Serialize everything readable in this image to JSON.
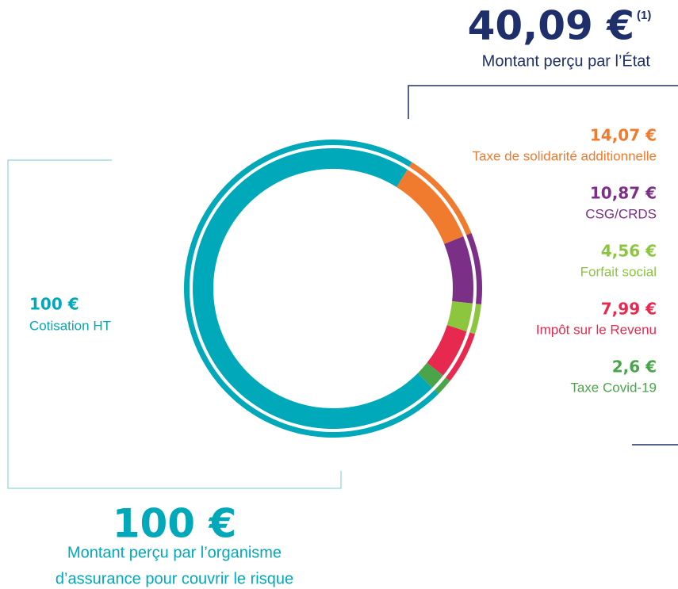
{
  "chart_data": {
    "type": "donut",
    "state_amount": "40,09 €",
    "state_note": "(1)",
    "state_caption": "Montant perçu par l’État",
    "insurer_amount": "100 €",
    "insurer_caption": [
      "Montant perçu par l’organisme",
      "d’assurance pour couvrir le risque"
    ],
    "categories": [
      "Taxe de solidarité additionnelle",
      "CSG/CRDS",
      "Forfait social",
      "Impôt sur le Revenu",
      "Taxe Covid-19",
      "Cotisation HT"
    ],
    "values": [
      14.07,
      10.87,
      4.56,
      7.99,
      2.6,
      100
    ],
    "value_labels": [
      "14,07 €",
      "10,87 €",
      "4,56 €",
      "7,99 €",
      "2,6 €",
      "100 €"
    ],
    "colors": [
      "#f07a2e",
      "#7c2f87",
      "#8cc63f",
      "#e8294f",
      "#4aa54a",
      "#00a9b9"
    ]
  }
}
